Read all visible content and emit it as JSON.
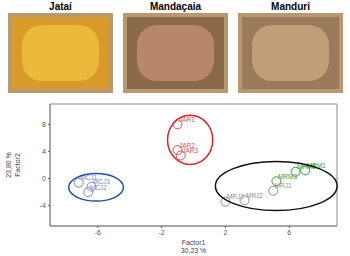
{
  "photos": [
    "Jataí",
    "Mandaçaia",
    "Manduri"
  ],
  "chart_data": {
    "type": "scatter",
    "x_label": [
      "Factor1",
      "30,23 %"
    ],
    "y_label": [
      "Factor2",
      "23,80 %"
    ],
    "xlim": [
      -9,
      9
    ],
    "xticks": [
      -6,
      -2,
      2,
      6
    ],
    "ylim": [
      -7,
      11
    ],
    "yticks": [
      -4,
      0,
      4,
      8
    ],
    "grid": false,
    "series": [
      {
        "color": "#1f4fb0",
        "colors": [
          "#7a8bc0",
          "#7a8bc0",
          "#7a8bc0"
        ],
        "labels": [
          "MCJ1",
          "MCJ2",
          "MCJ3"
        ],
        "x": [
          -7.2,
          -6.6,
          -6.4
        ],
        "y": [
          -0.6,
          -2.0,
          -1.2
        ]
      },
      {
        "color": "#e0202a",
        "colors": [
          "#d05060",
          "#d05060",
          "#d05060"
        ],
        "labels": [
          "JAR1",
          "JAR2",
          "JAR3"
        ],
        "x": [
          -1.0,
          -1.0,
          -0.8
        ],
        "y": [
          8.0,
          4.2,
          3.4
        ]
      },
      {
        "color": "#111111",
        "colors": [
          "#909090",
          "#909090",
          "#909090",
          "#3a9a3a",
          "#3a9a3a",
          "#3a9a3a"
        ],
        "labels": [
          "MRJ1",
          "MRJ2",
          "MRJ3",
          "MRM1",
          "MRM2",
          "MRM3"
        ],
        "x": [
          5.0,
          3.2,
          2.0,
          7.0,
          6.4,
          5.2
        ],
        "y": [
          -1.8,
          -3.2,
          -3.4,
          1.2,
          1.0,
          -0.4
        ]
      }
    ]
  }
}
